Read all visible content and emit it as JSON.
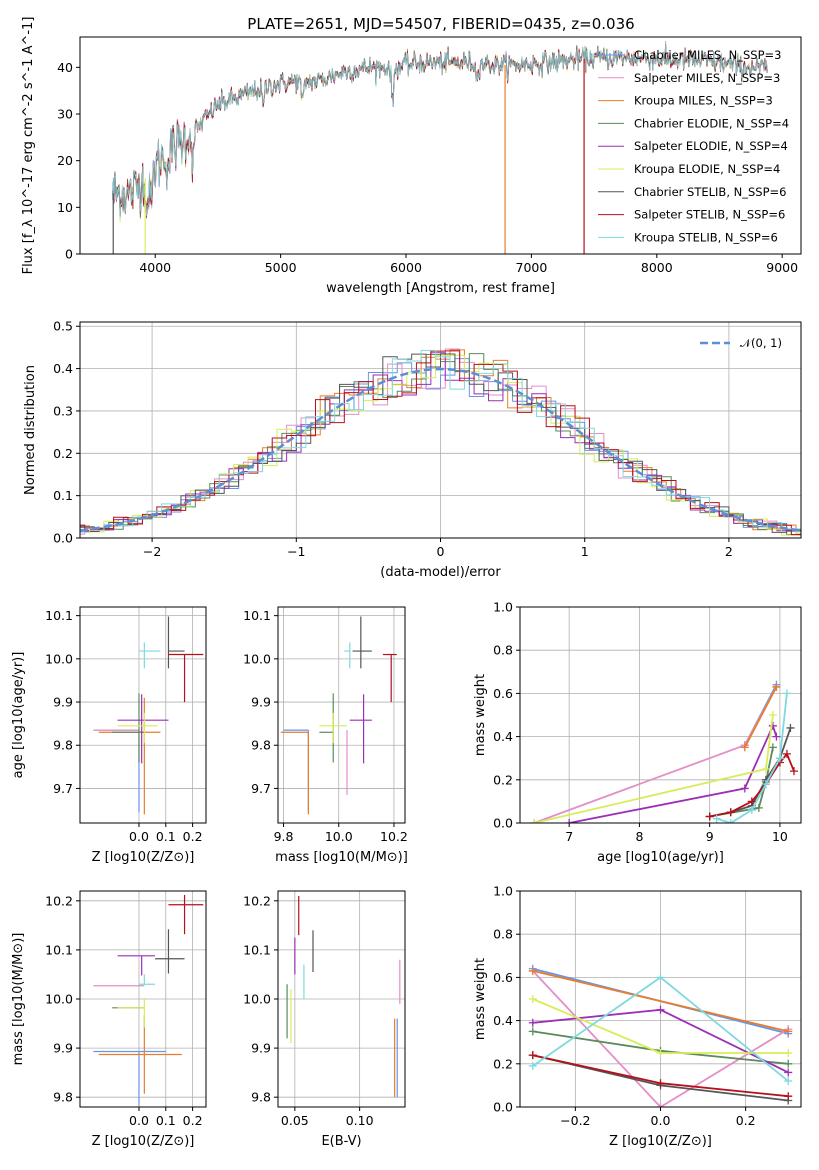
{
  "title": "PLATE=2651, MJD=54507, FIBERID=0435, z=0.036",
  "colors": {
    "chabrier_miles": "#6495ed",
    "salpeter_miles": "#e58ec6",
    "kroupa_miles": "#e87d2b",
    "chabrier_elodie": "#5b8a5b",
    "salpeter_elodie": "#9b2fb5",
    "kroupa_elodie": "#d8ec5a",
    "chabrier_stelib": "#555555",
    "salpeter_stelib": "#b5101b",
    "kroupa_stelib": "#7fd9df",
    "gaussian": "#5b8fd6"
  },
  "chart_data": [
    {
      "id": "spectrum",
      "type": "line",
      "title": "PLATE=2651, MJD=54507, FIBERID=0435, z=0.036",
      "xlabel": "wavelength [Angstrom, rest frame]",
      "ylabel": "Flux [f_λ 10^-17 erg cm^-2 s^-1 A^-1]",
      "xlim": [
        3400,
        9150
      ],
      "ylim": [
        0,
        46.5
      ],
      "xticks": [
        4000,
        5000,
        6000,
        7000,
        8000,
        9000
      ],
      "yticks": [
        0,
        10,
        20,
        30,
        40
      ],
      "legend_position": "right",
      "series": [
        {
          "name": "Chabrier MILES, N_SSP=3",
          "color_key": "chabrier_miles"
        },
        {
          "name": "Salpeter MILES, N_SSP=3",
          "color_key": "salpeter_miles"
        },
        {
          "name": "Kroupa MILES, N_SSP=3",
          "color_key": "kroupa_miles"
        },
        {
          "name": "Chabrier ELODIE, N_SSP=4",
          "color_key": "chabrier_elodie"
        },
        {
          "name": "Salpeter ELODIE, N_SSP=4",
          "color_key": "salpeter_elodie"
        },
        {
          "name": "Kroupa ELODIE, N_SSP=4",
          "color_key": "kroupa_elodie"
        },
        {
          "name": "Chabrier STELIB, N_SSP=6",
          "color_key": "chabrier_stelib"
        },
        {
          "name": "Salpeter STELIB, N_SSP=6",
          "color_key": "salpeter_stelib"
        },
        {
          "name": "Kroupa STELIB, N_SSP=6",
          "color_key": "kroupa_stelib"
        }
      ],
      "continuum_approx": {
        "wavelength": [
          3660,
          3800,
          3950,
          4100,
          4300,
          4500,
          4700,
          4900,
          5100,
          5300,
          5500,
          5700,
          5900,
          6100,
          6300,
          6500,
          6700,
          6900,
          7100,
          7300,
          7500,
          7700,
          7900,
          8100,
          8300,
          8500,
          8700,
          8880
        ],
        "flux": [
          13,
          13,
          17,
          22,
          26,
          32,
          34,
          36,
          37,
          37,
          39,
          40,
          40,
          41,
          41,
          41,
          40.5,
          40.5,
          41,
          41.5,
          42,
          42,
          42,
          41.5,
          41.5,
          41,
          40,
          40
        ]
      }
    },
    {
      "id": "residual-histogram",
      "type": "area",
      "xlabel": "(data-model)/error",
      "ylabel": "Normed distribution",
      "xlim": [
        -2.5,
        2.5
      ],
      "ylim": [
        0,
        0.51
      ],
      "xticks": [
        -2,
        -1,
        0,
        1,
        2
      ],
      "yticks": [
        0.0,
        0.1,
        0.2,
        0.3,
        0.4,
        0.5
      ],
      "legend_position": "top-right",
      "gaussian_label": "𝒩(0, 1)",
      "bin_width": 0.1
    },
    {
      "id": "age-vs-z",
      "type": "scatter",
      "xlabel": "Z [log10(Z/Z⊙)]",
      "ylabel": "age  [log10(age/yr)]",
      "xlim": [
        -0.22,
        0.25
      ],
      "ylim": [
        9.62,
        10.12
      ],
      "xticks": [
        0.0,
        0.1,
        0.2
      ],
      "yticks": [
        9.7,
        9.8,
        9.9,
        10.0,
        10.1
      ],
      "points": [
        {
          "x": 0.0,
          "y": 9.835,
          "x_err": [
            0.17,
            0.0
          ],
          "y_err": [
            0.19,
            0.0
          ],
          "color_key": "chabrier_miles"
        },
        {
          "x": 0.0,
          "y": 9.835,
          "x_err": [
            0.17,
            0.0
          ],
          "y_err": [
            0.0,
            0.0
          ],
          "color_key": "salpeter_miles"
        },
        {
          "x": 0.02,
          "y": 9.83,
          "x_err": [
            0.17,
            0.06
          ],
          "y_err": [
            0.19,
            0.08
          ],
          "color_key": "kroupa_miles"
        },
        {
          "x": 0.0,
          "y": 9.83,
          "x_err": [
            0.1,
            0.02
          ],
          "y_err": [
            0.07,
            0.09
          ],
          "color_key": "chabrier_elodie"
        },
        {
          "x": 0.01,
          "y": 9.858,
          "x_err": [
            0.09,
            0.1
          ],
          "y_err": [
            0.1,
            0.06
          ],
          "color_key": "salpeter_elodie"
        },
        {
          "x": 0.02,
          "y": 9.845,
          "x_err": [
            0.1,
            0.05
          ],
          "y_err": [
            0.04,
            0.03
          ],
          "color_key": "kroupa_elodie"
        },
        {
          "x": 0.11,
          "y": 10.018,
          "x_err": [
            0.0,
            0.06
          ],
          "y_err": [
            0.04,
            0.08
          ],
          "color_key": "chabrier_stelib"
        },
        {
          "x": 0.17,
          "y": 10.01,
          "x_err": [
            0.06,
            0.07
          ],
          "y_err": [
            0.11,
            0.0
          ],
          "color_key": "salpeter_stelib"
        },
        {
          "x": 0.02,
          "y": 10.018,
          "x_err": [
            0.02,
            0.06
          ],
          "y_err": [
            0.04,
            0.02
          ],
          "color_key": "kroupa_stelib"
        }
      ]
    },
    {
      "id": "age-vs-mass",
      "type": "scatter",
      "xlabel": "mass [log10(M/M⊙)]",
      "ylabel": "",
      "xlim": [
        9.78,
        10.24
      ],
      "ylim": [
        9.62,
        10.12
      ],
      "xticks": [
        9.8,
        10.0,
        10.2
      ],
      "yticks": [
        9.7,
        9.8,
        9.9,
        10.0,
        10.1
      ],
      "points": [
        {
          "x": 9.89,
          "y": 9.835,
          "x_err": [
            0.09,
            0.0
          ],
          "y_err": [
            0.19,
            0.0
          ],
          "color_key": "chabrier_miles"
        },
        {
          "x": 10.03,
          "y": 9.835,
          "x_err": [
            0.0,
            0.0
          ],
          "y_err": [
            0.15,
            0.0
          ],
          "color_key": "salpeter_miles"
        },
        {
          "x": 9.89,
          "y": 9.83,
          "x_err": [
            0.1,
            0.0
          ],
          "y_err": [
            0.19,
            0.0
          ],
          "color_key": "kroupa_miles"
        },
        {
          "x": 9.98,
          "y": 9.83,
          "x_err": [
            0.05,
            0.0
          ],
          "y_err": [
            0.07,
            0.09
          ],
          "color_key": "chabrier_elodie"
        },
        {
          "x": 10.09,
          "y": 9.858,
          "x_err": [
            0.05,
            0.03
          ],
          "y_err": [
            0.1,
            0.06
          ],
          "color_key": "salpeter_elodie"
        },
        {
          "x": 9.98,
          "y": 9.845,
          "x_err": [
            0.05,
            0.05
          ],
          "y_err": [
            0.04,
            0.03
          ],
          "color_key": "kroupa_elodie"
        },
        {
          "x": 10.08,
          "y": 10.018,
          "x_err": [
            0.03,
            0.04
          ],
          "y_err": [
            0.04,
            0.08
          ],
          "color_key": "chabrier_stelib"
        },
        {
          "x": 10.19,
          "y": 10.01,
          "x_err": [
            0.03,
            0.02
          ],
          "y_err": [
            0.11,
            0.0
          ],
          "color_key": "salpeter_stelib"
        },
        {
          "x": 10.04,
          "y": 10.018,
          "x_err": [
            0.02,
            0.0
          ],
          "y_err": [
            0.04,
            0.02
          ],
          "color_key": "kroupa_stelib"
        }
      ]
    },
    {
      "id": "mass-weight-vs-age",
      "type": "line",
      "xlabel": "age  [log10(age/yr)]",
      "ylabel": "mass weight",
      "xlim": [
        6.3,
        10.3
      ],
      "ylim": [
        0,
        1.0
      ],
      "xticks": [
        7,
        8,
        9,
        10
      ],
      "yticks": [
        0.0,
        0.2,
        0.4,
        0.6,
        0.8,
        1.0
      ],
      "series": [
        {
          "color_key": "chabrier_miles",
          "x": [
            9.5,
            9.95
          ],
          "y": [
            0.36,
            0.64
          ]
        },
        {
          "color_key": "salpeter_miles",
          "x": [
            6.5,
            9.5,
            9.95
          ],
          "y": [
            0.0,
            0.36,
            0.63
          ]
        },
        {
          "color_key": "kroupa_miles",
          "x": [
            9.5,
            9.95
          ],
          "y": [
            0.35,
            0.63
          ]
        },
        {
          "color_key": "chabrier_elodie",
          "x": [
            9.0,
            9.7,
            9.8,
            9.9
          ],
          "y": [
            0.03,
            0.07,
            0.19,
            0.35
          ]
        },
        {
          "color_key": "salpeter_elodie",
          "x": [
            7.0,
            9.5,
            9.9,
            9.95
          ],
          "y": [
            0.0,
            0.16,
            0.45,
            0.4
          ]
        },
        {
          "color_key": "kroupa_elodie",
          "x": [
            6.5,
            9.8,
            9.9
          ],
          "y": [
            0.0,
            0.25,
            0.5
          ]
        },
        {
          "color_key": "chabrier_stelib",
          "x": [
            9.0,
            9.3,
            9.6,
            9.8,
            10.0,
            10.15
          ],
          "y": [
            0.03,
            0.05,
            0.08,
            0.2,
            0.3,
            0.44
          ]
        },
        {
          "color_key": "salpeter_stelib",
          "x": [
            9.0,
            9.3,
            9.6,
            9.8,
            10.0,
            10.1,
            10.2
          ],
          "y": [
            0.03,
            0.05,
            0.1,
            0.18,
            0.28,
            0.32,
            0.24
          ]
        },
        {
          "color_key": "kroupa_stelib",
          "x": [
            9.1,
            9.3,
            9.6,
            9.8,
            10.0,
            10.1
          ],
          "y": [
            0.02,
            0.0,
            0.06,
            0.18,
            0.3,
            0.6
          ]
        }
      ]
    },
    {
      "id": "mass-vs-z",
      "type": "scatter",
      "xlabel": "Z [log10(Z/Z⊙)]",
      "ylabel": "mass [log10(M/M⊙)]",
      "xlim": [
        -0.22,
        0.25
      ],
      "ylim": [
        9.78,
        10.22
      ],
      "xticks": [
        0.0,
        0.1,
        0.2
      ],
      "yticks": [
        9.8,
        9.9,
        10.0,
        10.1,
        10.2
      ],
      "points": [
        {
          "x": 0.0,
          "y": 9.893,
          "x_err": [
            0.17,
            0.1
          ],
          "y_err": [
            0.11,
            0.0
          ],
          "color_key": "chabrier_miles"
        },
        {
          "x": 0.0,
          "y": 10.027,
          "x_err": [
            0.17,
            0.02
          ],
          "y_err": [
            0.0,
            0.0
          ],
          "color_key": "salpeter_miles"
        },
        {
          "x": 0.02,
          "y": 9.887,
          "x_err": [
            0.17,
            0.14
          ],
          "y_err": [
            0.08,
            0.08
          ],
          "color_key": "kroupa_miles"
        },
        {
          "x": 0.0,
          "y": 9.982,
          "x_err": [
            0.1,
            0.02
          ],
          "y_err": [
            0.0,
            0.0
          ],
          "color_key": "chabrier_elodie"
        },
        {
          "x": 0.01,
          "y": 10.088,
          "x_err": [
            0.09,
            0.05
          ],
          "y_err": [
            0.04,
            0.0
          ],
          "color_key": "salpeter_elodie"
        },
        {
          "x": 0.02,
          "y": 9.982,
          "x_err": [
            0.1,
            0.0
          ],
          "y_err": [
            0.04,
            0.02
          ],
          "color_key": "kroupa_elodie"
        },
        {
          "x": 0.11,
          "y": 10.082,
          "x_err": [
            0.05,
            0.06
          ],
          "y_err": [
            0.03,
            0.06
          ],
          "color_key": "chabrier_stelib"
        },
        {
          "x": 0.17,
          "y": 10.192,
          "x_err": [
            0.06,
            0.07
          ],
          "y_err": [
            0.06,
            0.02
          ],
          "color_key": "salpeter_stelib"
        },
        {
          "x": 0.02,
          "y": 10.03,
          "x_err": [
            0.02,
            0.04
          ],
          "y_err": [
            0.0,
            0.02
          ],
          "color_key": "kroupa_stelib"
        }
      ]
    },
    {
      "id": "mass-vs-ebv",
      "type": "scatter",
      "xlabel": "E(B-V)",
      "ylabel": "",
      "xlim": [
        0.037,
        0.135
      ],
      "ylim": [
        9.78,
        10.22
      ],
      "xticks": [
        0.05,
        0.1
      ],
      "yticks": [
        9.8,
        9.9,
        10.0,
        10.1,
        10.2
      ],
      "points": [
        {
          "x": 0.129,
          "y": 9.96,
          "y_err": [
            0.16,
            0.0
          ],
          "color_key": "chabrier_miles"
        },
        {
          "x": 0.131,
          "y": 9.99,
          "y_err": [
            0.0,
            0.09
          ],
          "color_key": "salpeter_miles"
        },
        {
          "x": 0.127,
          "y": 9.96,
          "y_err": [
            0.16,
            0.0
          ],
          "color_key": "kroupa_miles"
        },
        {
          "x": 0.044,
          "y": 9.97,
          "y_err": [
            0.05,
            0.06
          ],
          "color_key": "chabrier_elodie"
        },
        {
          "x": 0.05,
          "y": 10.09,
          "y_err": [
            0.04,
            0.035
          ],
          "color_key": "salpeter_elodie"
        },
        {
          "x": 0.047,
          "y": 9.97,
          "y_err": [
            0.06,
            0.05
          ],
          "color_key": "kroupa_elodie"
        },
        {
          "x": 0.064,
          "y": 10.1,
          "y_err": [
            0.045,
            0.04
          ],
          "color_key": "chabrier_stelib"
        },
        {
          "x": 0.053,
          "y": 10.17,
          "y_err": [
            0.04,
            0.04
          ],
          "color_key": "salpeter_stelib"
        },
        {
          "x": 0.057,
          "y": 10.03,
          "y_err": [
            0.03,
            0.04
          ],
          "color_key": "kroupa_stelib"
        }
      ]
    },
    {
      "id": "mass-weight-vs-z",
      "type": "line",
      "xlabel": "Z [log10(Z/Z⊙)]",
      "ylabel": "mass weight",
      "xlim": [
        -0.33,
        0.33
      ],
      "ylim": [
        0,
        1.0
      ],
      "xticks": [
        -0.2,
        0.0,
        0.2
      ],
      "yticks": [
        0.0,
        0.2,
        0.4,
        0.6,
        0.8,
        1.0
      ],
      "series": [
        {
          "color_key": "chabrier_miles",
          "x": [
            -0.3,
            0.3
          ],
          "y": [
            0.64,
            0.34
          ]
        },
        {
          "color_key": "salpeter_miles",
          "x": [
            -0.3,
            0.0,
            0.3
          ],
          "y": [
            0.63,
            0.0,
            0.36
          ]
        },
        {
          "color_key": "kroupa_miles",
          "x": [
            -0.3,
            0.3
          ],
          "y": [
            0.63,
            0.35
          ]
        },
        {
          "color_key": "chabrier_elodie",
          "x": [
            -0.3,
            0.0,
            0.3
          ],
          "y": [
            0.35,
            0.26,
            0.2
          ]
        },
        {
          "color_key": "salpeter_elodie",
          "x": [
            -0.3,
            0.0,
            0.3
          ],
          "y": [
            0.39,
            0.45,
            0.16
          ]
        },
        {
          "color_key": "kroupa_elodie",
          "x": [
            -0.3,
            0.0,
            0.3
          ],
          "y": [
            0.5,
            0.25,
            0.25
          ]
        },
        {
          "color_key": "chabrier_stelib",
          "x": [
            -0.3,
            0.0,
            0.3
          ],
          "y": [
            0.24,
            0.1,
            0.03
          ]
        },
        {
          "color_key": "salpeter_stelib",
          "x": [
            -0.3,
            0.0,
            0.3
          ],
          "y": [
            0.24,
            0.11,
            0.05
          ]
        },
        {
          "color_key": "kroupa_stelib",
          "x": [
            -0.3,
            0.0,
            0.3
          ],
          "y": [
            0.19,
            0.6,
            0.12
          ]
        }
      ]
    }
  ]
}
